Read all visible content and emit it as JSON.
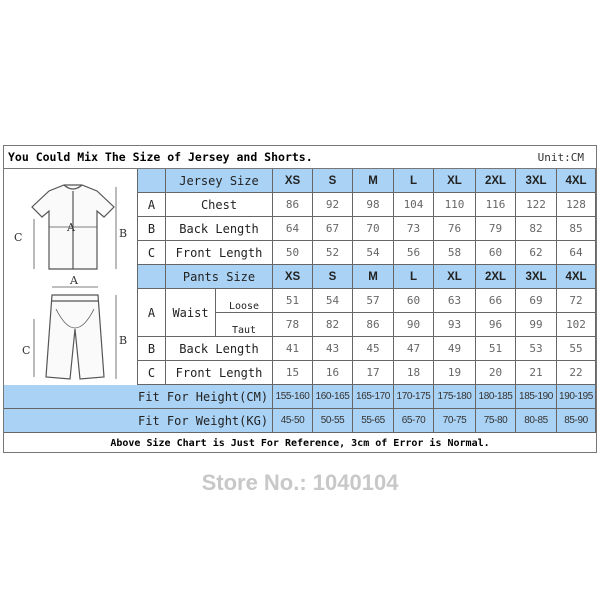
{
  "title": "You Could Mix The Size of Jersey and Shorts.",
  "unit": "Unit:CM",
  "watermark": "Store No.: 1040104",
  "diagram_labels": {
    "jersey": {
      "a": "A",
      "b": "B",
      "c": "C"
    },
    "shorts": {
      "a": "A",
      "b": "B",
      "c": "C"
    }
  },
  "sizes": [
    "XS",
    "S",
    "M",
    "L",
    "XL",
    "2XL",
    "3XL",
    "4XL"
  ],
  "jersey": {
    "header": "Jersey Size",
    "rows": [
      {
        "letter": "A",
        "label": "Chest",
        "values": [
          "86",
          "92",
          "98",
          "104",
          "110",
          "116",
          "122",
          "128"
        ]
      },
      {
        "letter": "B",
        "label": "Back Length",
        "values": [
          "64",
          "67",
          "70",
          "73",
          "76",
          "79",
          "82",
          "85"
        ]
      },
      {
        "letter": "C",
        "label": "Front Length",
        "values": [
          "50",
          "52",
          "54",
          "56",
          "58",
          "60",
          "62",
          "64"
        ]
      }
    ]
  },
  "pants": {
    "header": "Pants Size",
    "waist": {
      "letter": "A",
      "label": "Waist",
      "loose": {
        "label": "Loose",
        "values": [
          "51",
          "54",
          "57",
          "60",
          "63",
          "66",
          "69",
          "72"
        ]
      },
      "taut": {
        "label": "Taut",
        "values": [
          "78",
          "82",
          "86",
          "90",
          "93",
          "96",
          "99",
          "102"
        ]
      }
    },
    "rows": [
      {
        "letter": "B",
        "label": "Back Length",
        "values": [
          "41",
          "43",
          "45",
          "47",
          "49",
          "51",
          "53",
          "55"
        ]
      },
      {
        "letter": "C",
        "label": "Front Length",
        "values": [
          "15",
          "16",
          "17",
          "18",
          "19",
          "20",
          "21",
          "22"
        ]
      }
    ]
  },
  "fit": [
    {
      "label": "Fit For Height(CM)",
      "values": [
        "155-160",
        "160-165",
        "165-170",
        "170-175",
        "175-180",
        "180-185",
        "185-190",
        "190-195"
      ]
    },
    {
      "label": "Fit For Weight(KG)",
      "values": [
        "45-50",
        "50-55",
        "55-65",
        "65-70",
        "70-75",
        "75-80",
        "80-85",
        "85-90"
      ]
    }
  ],
  "footer": "Above Size Chart is Just For Reference, 3cm of Error is Normal.",
  "colors": {
    "header_fill": "#a9d2f5",
    "border": "#666666"
  }
}
